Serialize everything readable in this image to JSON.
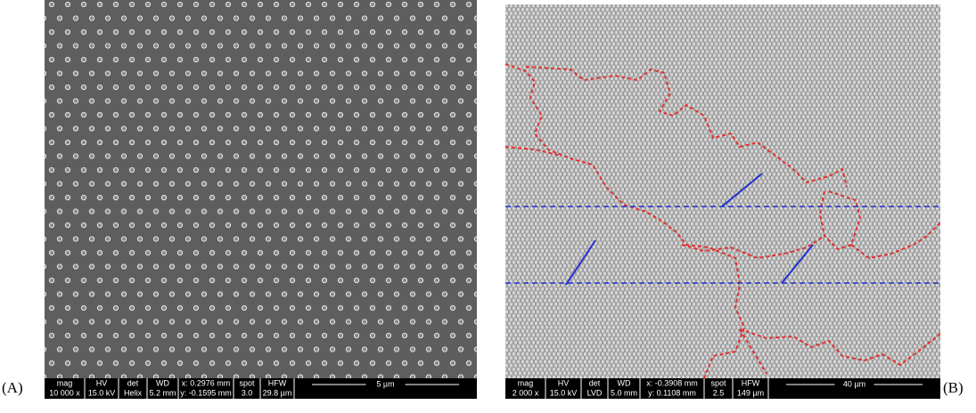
{
  "panels": [
    {
      "label": "(A)",
      "info": [
        {
          "header": "mag",
          "value": "10 000 x"
        },
        {
          "header": "HV",
          "value": "15.0 kV"
        },
        {
          "header": "det",
          "value": "Helix"
        },
        {
          "header": "WD",
          "value": "5.2 mm"
        },
        {
          "header": "x: 0.2976 mm",
          "value": "y: -0.1595 mm"
        },
        {
          "header": "spot",
          "value": "3.0"
        },
        {
          "header": "HFW",
          "value": "29.8 µm"
        }
      ],
      "scale_bar": "5 µm"
    },
    {
      "label": "(B)",
      "info": [
        {
          "header": "mag",
          "value": "2 000 x"
        },
        {
          "header": "HV",
          "value": "15.0 kV"
        },
        {
          "header": "det",
          "value": "LVD"
        },
        {
          "header": "WD",
          "value": "5.0 mm"
        },
        {
          "header": "x: -0.3908 mm",
          "value": "y: 0.1108 mm"
        },
        {
          "header": "spot",
          "value": "2.5"
        },
        {
          "header": "HFW",
          "value": "149 µm"
        }
      ],
      "scale_bar": "40 µm"
    }
  ]
}
